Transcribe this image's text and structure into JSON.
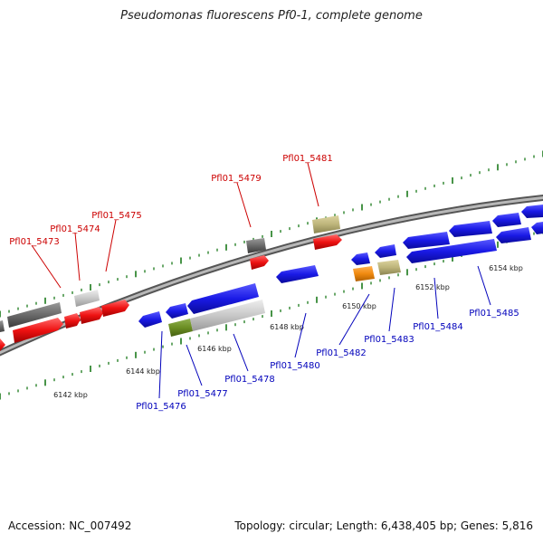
{
  "title": "Pseudomonas fluorescens Pf0-1, complete genome",
  "footer": {
    "accession": "Accession: NC_007492",
    "topology": "Topology: circular; Length: 6,438,405 bp; Genes: 5,816"
  },
  "colors": {
    "backbone": "#8a8a8a",
    "forward_label": "#cc0000",
    "reverse_label": "#0000bb",
    "tick": "#1a7a1a",
    "blue_gene": "#1a1ae6",
    "red_gene": "#ee1111",
    "dark_gray_gene": "#6a6a6a",
    "light_gray_gene": "#c8c8c8",
    "khaki_gene": "#bdb47a",
    "orange_gene": "#f08a10",
    "olive_gene": "#6b8e23"
  },
  "kbp_labels": [
    "6142 kbp",
    "6144 kbp",
    "6146 kbp",
    "6148 kbp",
    "6150 kbp",
    "6152 kbp",
    "6154 kbp"
  ],
  "forward_gene_labels": [
    "Pfl01_5473",
    "Pfl01_5474",
    "Pfl01_5475",
    "Pfl01_5479",
    "Pfl01_5481"
  ],
  "reverse_gene_labels": [
    "Pfl01_5476",
    "Pfl01_5477",
    "Pfl01_5478",
    "Pfl01_5480",
    "Pfl01_5482",
    "Pfl01_5483",
    "Pfl01_5484",
    "Pfl01_5485"
  ]
}
